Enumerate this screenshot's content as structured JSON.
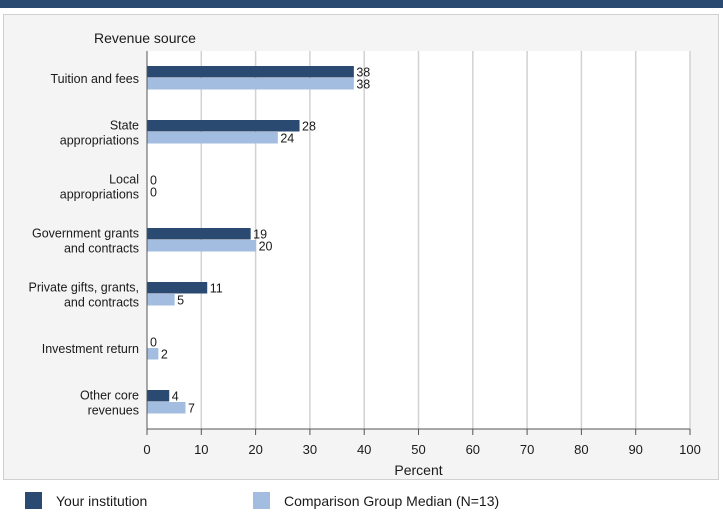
{
  "chart_data": {
    "type": "bar",
    "orientation": "horizontal",
    "title": "Revenue source",
    "xlabel": "Percent",
    "ylabel": "",
    "xlim": [
      0,
      100
    ],
    "xticks": [
      0,
      10,
      20,
      30,
      40,
      50,
      60,
      70,
      80,
      90,
      100
    ],
    "grid": true,
    "legend_position": "bottom",
    "categories": [
      [
        "Tuition and fees"
      ],
      [
        "State",
        "appropriations"
      ],
      [
        "Local",
        "appropriations"
      ],
      [
        "Government grants",
        "and contracts"
      ],
      [
        "Private gifts, grants,",
        "and contracts"
      ],
      [
        "Investment return"
      ],
      [
        "Other core",
        "revenues"
      ]
    ],
    "series": [
      {
        "name": "Your institution",
        "color": "#2b4a72",
        "values": [
          38,
          28,
          0,
          19,
          11,
          0,
          4
        ]
      },
      {
        "name": "Comparison Group Median (N=13)",
        "color": "#a3bde0",
        "values": [
          38,
          24,
          0,
          20,
          5,
          2,
          7
        ]
      }
    ]
  }
}
